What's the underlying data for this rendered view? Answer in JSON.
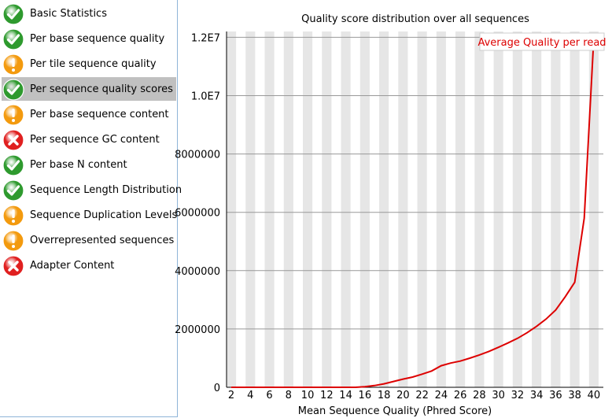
{
  "modules": [
    {
      "label": "Basic Statistics",
      "status": "pass",
      "icon": "check-icon"
    },
    {
      "label": "Per base sequence quality",
      "status": "pass",
      "icon": "check-icon"
    },
    {
      "label": "Per tile sequence quality",
      "status": "warn",
      "icon": "exclamation-icon"
    },
    {
      "label": "Per sequence quality scores",
      "status": "pass",
      "icon": "check-icon",
      "selected": true
    },
    {
      "label": "Per base sequence content",
      "status": "warn",
      "icon": "exclamation-icon"
    },
    {
      "label": "Per sequence GC content",
      "status": "fail",
      "icon": "cross-icon"
    },
    {
      "label": "Per base N content",
      "status": "pass",
      "icon": "check-icon"
    },
    {
      "label": "Sequence Length Distribution",
      "status": "pass",
      "icon": "check-icon"
    },
    {
      "label": "Sequence Duplication Levels",
      "status": "warn",
      "icon": "exclamation-icon"
    },
    {
      "label": "Overrepresented sequences",
      "status": "warn",
      "icon": "exclamation-icon"
    },
    {
      "label": "Adapter Content",
      "status": "fail",
      "icon": "cross-icon"
    }
  ],
  "status_colors": {
    "pass": "#2e9a2e",
    "warn": "#f39a0e",
    "fail": "#e02020"
  },
  "chart_data": {
    "type": "line",
    "title": "Quality score distribution over all sequences",
    "xlabel": "Mean Sequence Quality (Phred Score)",
    "ylabel": "",
    "x": [
      2,
      3,
      4,
      5,
      6,
      7,
      8,
      9,
      10,
      11,
      12,
      13,
      14,
      15,
      16,
      17,
      18,
      19,
      20,
      21,
      22,
      23,
      24,
      25,
      26,
      27,
      28,
      29,
      30,
      31,
      32,
      33,
      34,
      35,
      36,
      37,
      38,
      39,
      40
    ],
    "series": [
      {
        "name": "Average Quality per read",
        "color": "#dd0000",
        "values": [
          0,
          0,
          0,
          0,
          0,
          0,
          0,
          0,
          0,
          0,
          0,
          0,
          0,
          0,
          20000,
          60000,
          120000,
          200000,
          280000,
          350000,
          450000,
          560000,
          740000,
          830000,
          900000,
          1000000,
          1110000,
          1230000,
          1370000,
          1520000,
          1680000,
          1870000,
          2090000,
          2340000,
          2650000,
          3100000,
          3600000,
          5800000,
          12000000
        ]
      }
    ],
    "xticks": [
      "2",
      "4",
      "6",
      "8",
      "10",
      "12",
      "14",
      "16",
      "18",
      "20",
      "22",
      "24",
      "26",
      "28",
      "30",
      "32",
      "34",
      "36",
      "38",
      "40"
    ],
    "yticks": [
      0,
      2000000,
      4000000,
      6000000,
      8000000,
      10000000,
      12000000
    ],
    "ytick_labels": [
      "0",
      "2000000",
      "4000000",
      "6000000",
      "8000000",
      "1.0E7",
      "1.2E7"
    ],
    "ylim": [
      0,
      12200000
    ],
    "xlim": [
      1.5,
      41
    ],
    "grid": true,
    "legend_position": "top-right"
  }
}
